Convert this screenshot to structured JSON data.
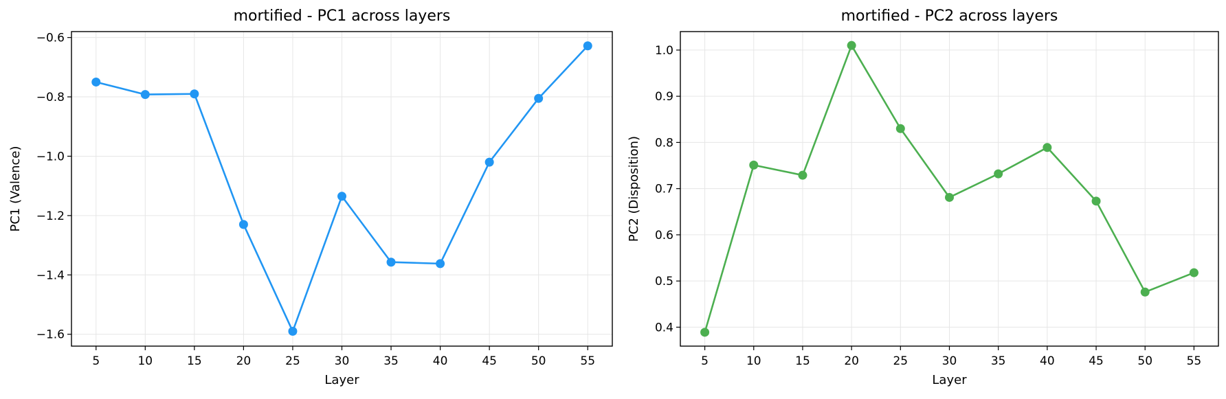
{
  "chart_data": [
    {
      "type": "line",
      "title": "mortified - PC1 across layers",
      "xlabel": "Layer",
      "ylabel": "PC1 (Valence)",
      "x": [
        5,
        10,
        15,
        20,
        25,
        30,
        35,
        40,
        45,
        50,
        55
      ],
      "xticks": [
        5,
        10,
        15,
        20,
        25,
        30,
        35,
        40,
        45,
        50,
        55
      ],
      "xlim": [
        2.5,
        57.5
      ],
      "ylim": [
        -1.64,
        -0.58
      ],
      "yticks": [
        -1.6,
        -1.4,
        -1.2,
        -1.0,
        -0.8,
        -0.6
      ],
      "ytick_labels": [
        "−1.6",
        "−1.4",
        "−1.2",
        "−1.0",
        "−0.8",
        "−0.6"
      ],
      "grid": true,
      "series": [
        {
          "values": [
            -0.75,
            -0.792,
            -0.79,
            -1.23,
            -1.59,
            -1.135,
            -1.357,
            -1.362,
            -1.02,
            -0.805,
            -0.628
          ],
          "color": "#2196F3",
          "marker": "circle"
        }
      ]
    },
    {
      "type": "line",
      "title": "mortified - PC2 across layers",
      "xlabel": "Layer",
      "ylabel": "PC2 (Disposition)",
      "x": [
        5,
        10,
        15,
        20,
        25,
        30,
        35,
        40,
        45,
        50,
        55
      ],
      "xticks": [
        5,
        10,
        15,
        20,
        25,
        30,
        35,
        40,
        45,
        50,
        55
      ],
      "xlim": [
        2.5,
        57.5
      ],
      "ylim": [
        0.359,
        1.04
      ],
      "yticks": [
        0.4,
        0.5,
        0.6,
        0.7,
        0.8,
        0.9,
        1.0
      ],
      "ytick_labels": [
        "0.4",
        "0.5",
        "0.6",
        "0.7",
        "0.8",
        "0.9",
        "1.0"
      ],
      "grid": true,
      "series": [
        {
          "values": [
            0.389,
            0.751,
            0.729,
            1.01,
            0.83,
            0.681,
            0.732,
            0.789,
            0.673,
            0.476,
            0.518
          ],
          "color": "#4CAF50",
          "marker": "circle"
        }
      ]
    }
  ]
}
